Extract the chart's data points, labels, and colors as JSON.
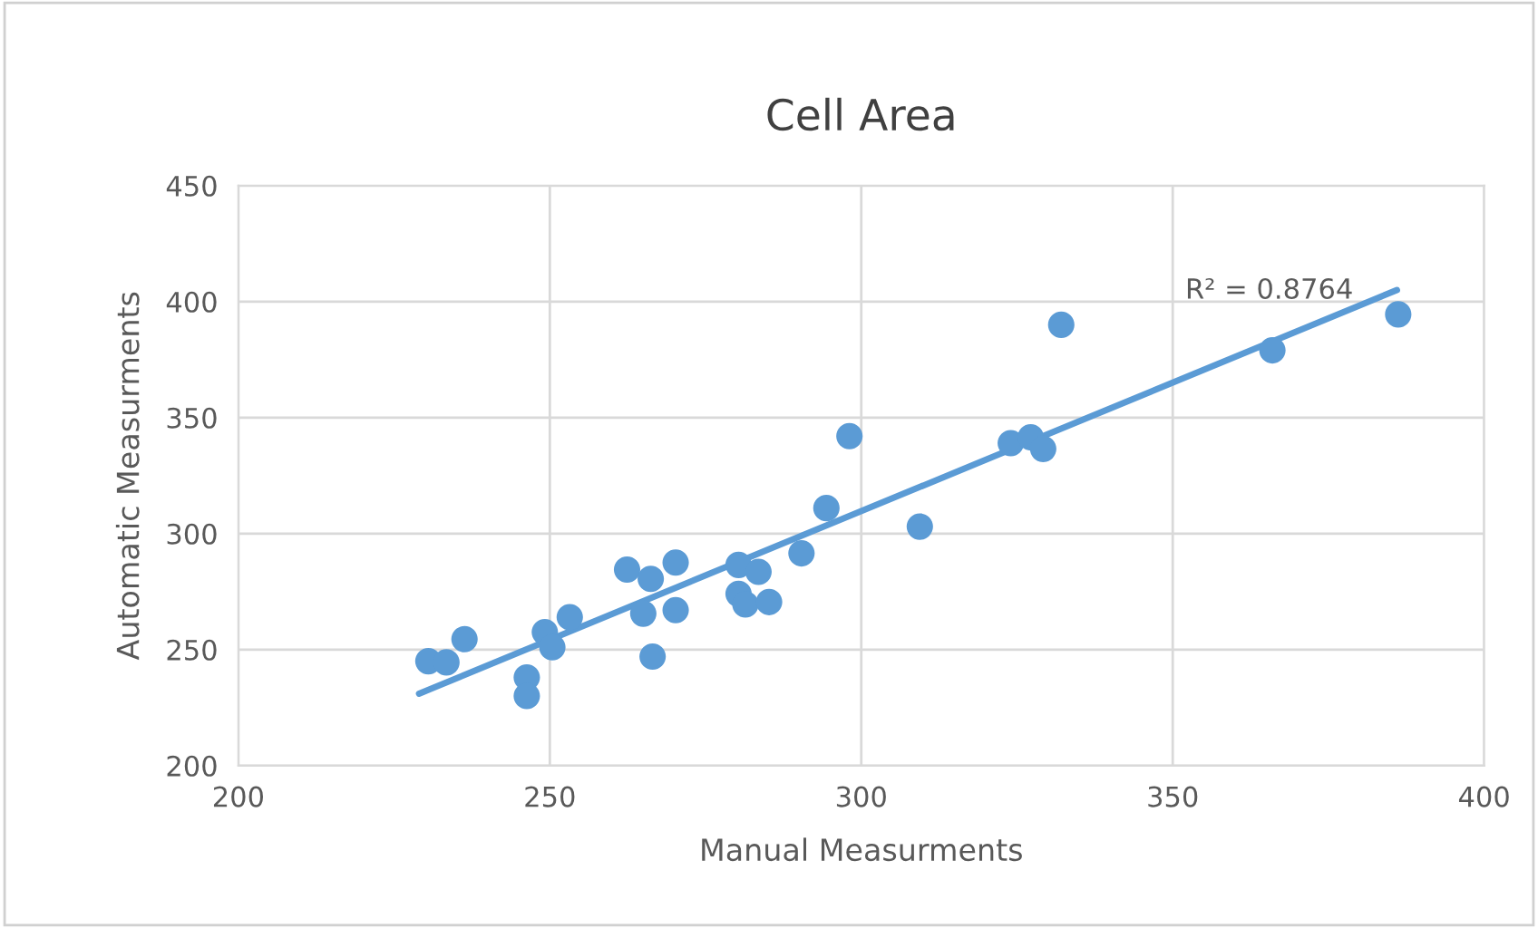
{
  "chart_data": {
    "type": "scatter",
    "title": "Cell Area",
    "xlabel": "Manual Measurments",
    "ylabel": "Automatic Measurments",
    "xlim": [
      200,
      400
    ],
    "xticks": [
      200,
      250,
      300,
      350,
      400
    ],
    "ylim": [
      200,
      450
    ],
    "yticks": [
      200,
      250,
      300,
      350,
      400,
      450
    ],
    "grid": true,
    "series": [
      {
        "marker": "circle",
        "color": "#5b9bd5",
        "x": [
          230.5,
          233.4,
          236.3,
          246.3,
          246.3,
          249.2,
          250.4,
          253.2,
          262.4,
          265,
          266.2,
          266.5,
          270.2,
          270.2,
          280.3,
          280.3,
          281.4,
          283.5,
          285.2,
          290.4,
          294.4,
          298.1,
          309.4,
          324,
          327.2,
          329.2,
          332.1,
          366,
          386.2
        ],
        "values": [
          245,
          244.5,
          254.5,
          238,
          230,
          257.5,
          251,
          264,
          284.5,
          265.5,
          280.5,
          247,
          287.5,
          267,
          286.5,
          274,
          269.5,
          283.5,
          270.5,
          291.5,
          311,
          342,
          303,
          339,
          341.5,
          336.5,
          390,
          379,
          394.5
        ]
      },
      {
        "type": "line",
        "marker": "none",
        "color": "#5b9bd5",
        "x": [
          229,
          386
        ],
        "values": [
          231,
          405
        ]
      }
    ],
    "annotations": [
      "R² = 0.8764"
    ]
  }
}
